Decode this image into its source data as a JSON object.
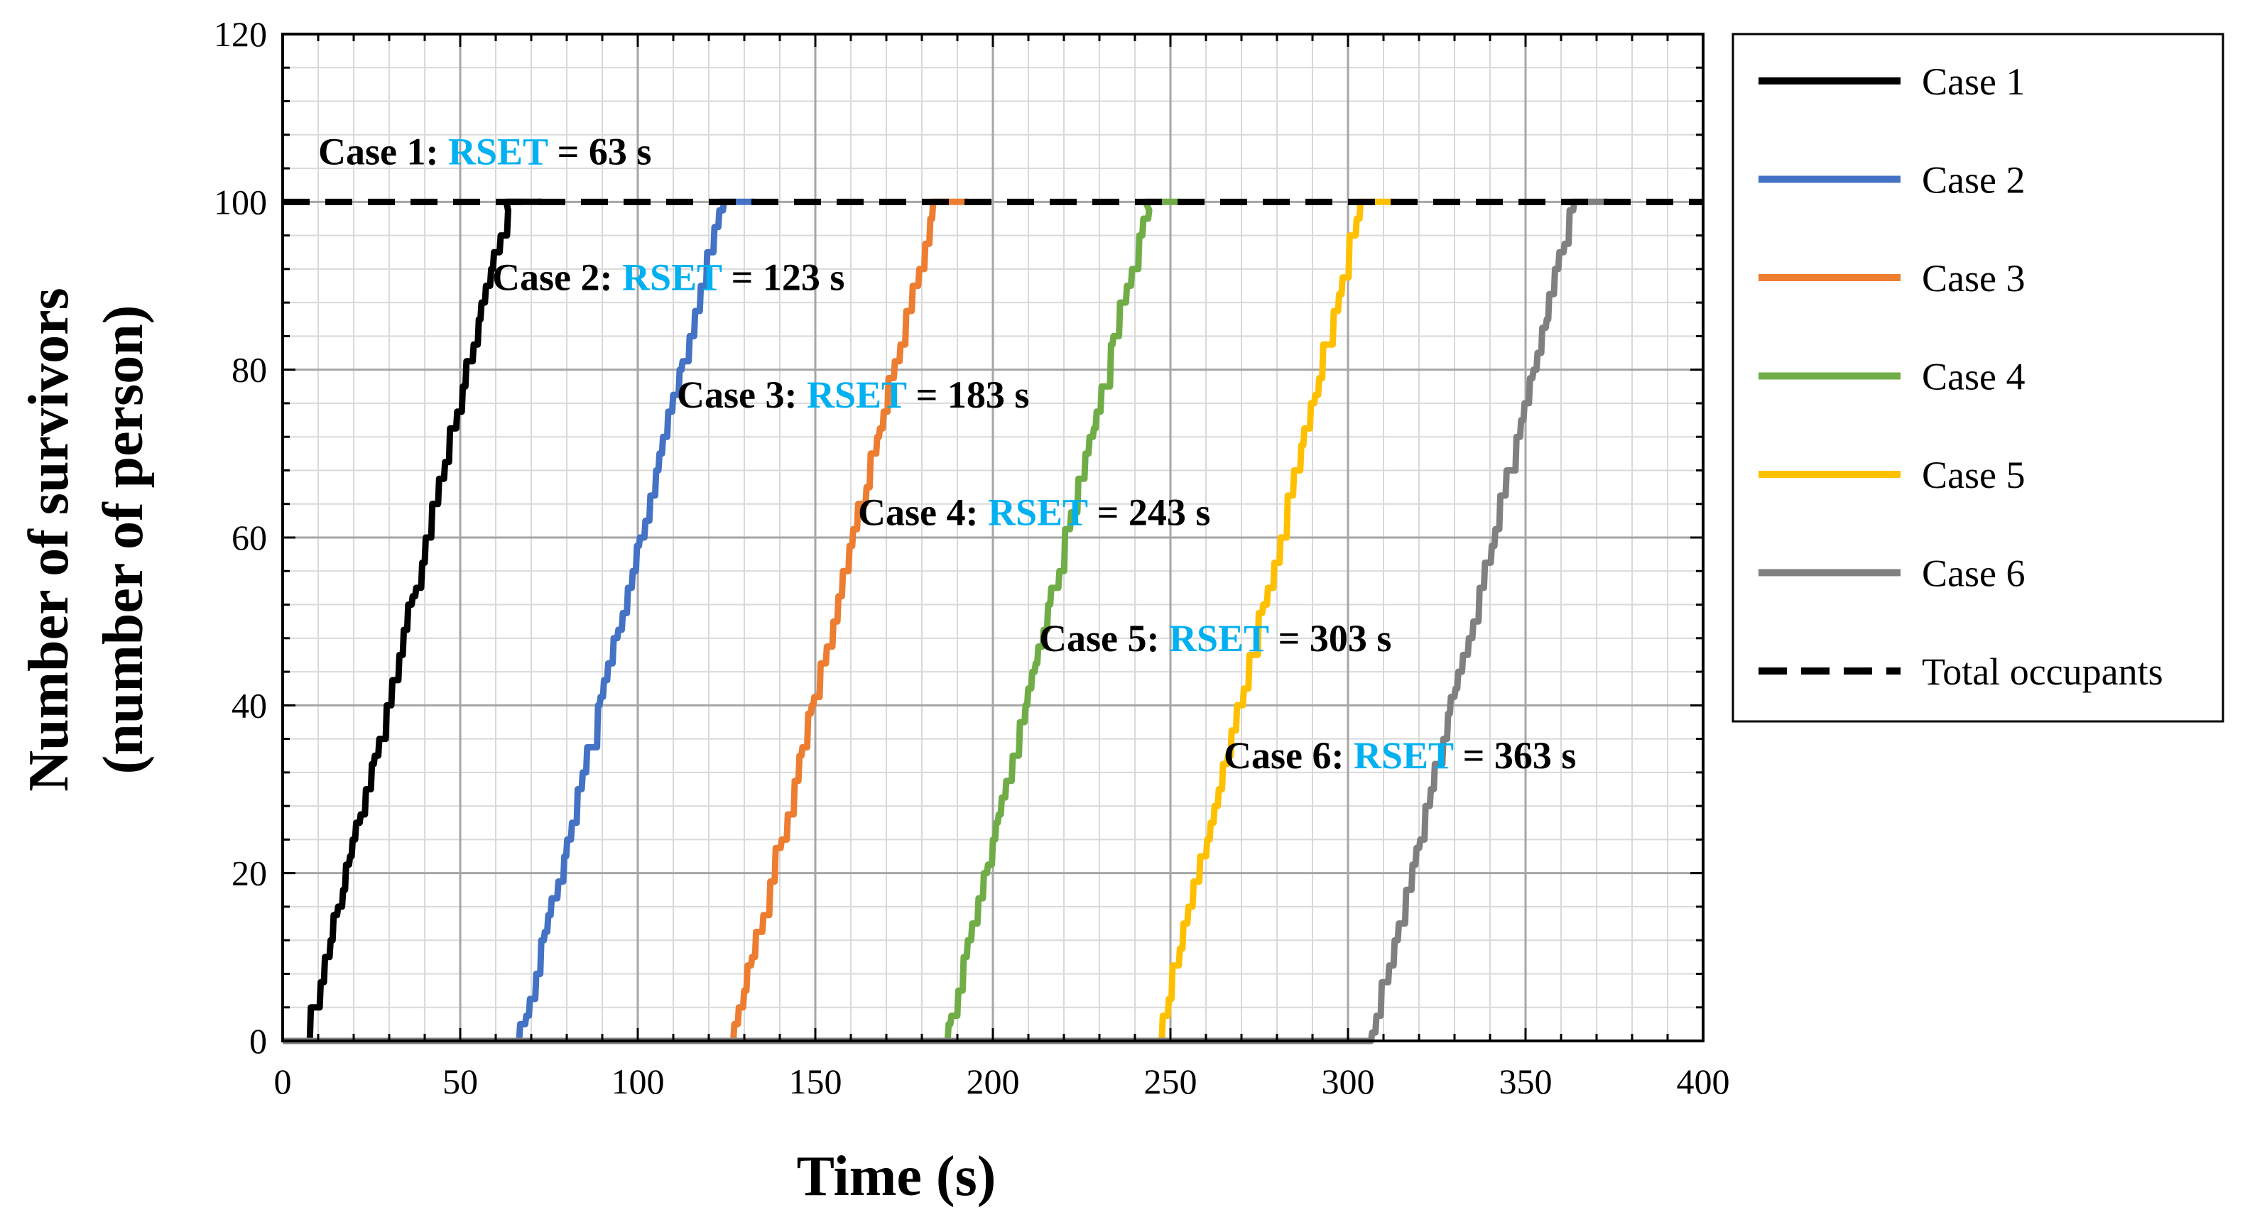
{
  "chart_data": {
    "type": "line",
    "title": "",
    "xlabel": "Time (s)",
    "ylabel_line1": "Number of survivors",
    "ylabel_line2": "(number of person)",
    "xlim": [
      0,
      400
    ],
    "ylim": [
      0,
      120
    ],
    "x_major_step": 50,
    "y_major_step": 20,
    "x_minor_step": 10,
    "y_minor_step": 4,
    "x_ticks": [
      "0",
      "50",
      "100",
      "150",
      "200",
      "250",
      "300",
      "350",
      "400"
    ],
    "y_ticks": [
      "0",
      "20",
      "40",
      "60",
      "80",
      "100",
      "120"
    ],
    "grid": true,
    "legend_position": "right",
    "series": [
      {
        "name": "Case 1",
        "color": "#000000",
        "start": 6,
        "end": 63,
        "rset": 63
      },
      {
        "name": "Case 2",
        "color": "#4472C4",
        "start": 66,
        "end": 123,
        "rset": 123
      },
      {
        "name": "Case 3",
        "color": "#ED7D31",
        "start": 126,
        "end": 183,
        "rset": 183
      },
      {
        "name": "Case 4",
        "color": "#70AD47",
        "start": 186,
        "end": 243,
        "rset": 243
      },
      {
        "name": "Case 5",
        "color": "#FFC000",
        "start": 246,
        "end": 303,
        "rset": 303
      },
      {
        "name": "Case 6",
        "color": "#808080",
        "start": 306,
        "end": 363,
        "rset": 363
      }
    ],
    "total_occupants": {
      "name": "Total occupants",
      "value": 100,
      "color": "#000000"
    },
    "annotations": [
      {
        "prefix": "Case 1: ",
        "highlight": "RSET",
        "suffix": " = 63 s",
        "x": 10,
        "y": 106
      },
      {
        "prefix": "Case 2: ",
        "highlight": "RSET",
        "suffix": " = 123 s",
        "x": 59,
        "y": 91
      },
      {
        "prefix": "Case 3: ",
        "highlight": "RSET",
        "suffix": " = 183 s",
        "x": 111,
        "y": 77
      },
      {
        "prefix": "Case 4: ",
        "highlight": "RSET",
        "suffix": " = 243 s",
        "x": 162,
        "y": 63
      },
      {
        "prefix": "Case 5: ",
        "highlight": "RSET",
        "suffix": " = 303 s",
        "x": 213,
        "y": 48
      },
      {
        "prefix": "Case 6: ",
        "highlight": "RSET",
        "suffix": " = 363 s",
        "x": 265,
        "y": 34
      }
    ],
    "highlight_color": "#00B0F0"
  }
}
